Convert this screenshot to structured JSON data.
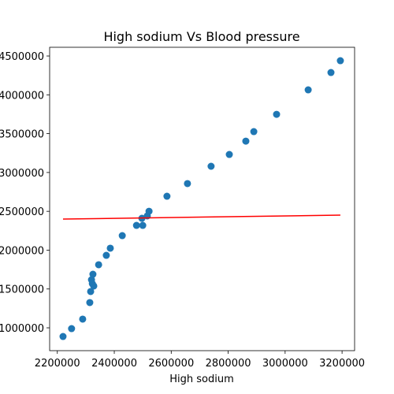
{
  "chart_data": {
    "type": "scatter",
    "title": "High sodium Vs Blood pressure",
    "xlabel": "High sodium",
    "color": "#1f77b4",
    "x": [
      2220000,
      2250000,
      2289000,
      2314000,
      2317000,
      2320000,
      2323000,
      2325000,
      2328000,
      2345000,
      2372000,
      2386000,
      2428000,
      2478000,
      2497000,
      2500000,
      2516000,
      2522000,
      2585000,
      2657000,
      2740000,
      2804000,
      2862000,
      2890000,
      2970000,
      3081000,
      3161000,
      3194000
    ],
    "values": [
      888000,
      990000,
      1112000,
      1325000,
      1467000,
      1619000,
      1568000,
      1690000,
      1538000,
      1812000,
      1933000,
      2025000,
      2187000,
      2319000,
      2410000,
      2319000,
      2441000,
      2501000,
      2694000,
      2857000,
      3080000,
      3232000,
      3404000,
      3526000,
      3749000,
      4064000,
      4287000,
      4439000
    ],
    "fit_line": {
      "x": [
        2220000,
        3194000
      ],
      "y": [
        2400000,
        2451000
      ],
      "color": "#ff0000"
    },
    "xlim": [
      2173000,
      3244000
    ],
    "ylim": [
      706000,
      4612000
    ],
    "xticks": [
      2200000,
      2400000,
      2600000,
      2800000,
      3000000,
      3200000
    ],
    "yticks": [
      1000000,
      1500000,
      2000000,
      2500000,
      3000000,
      3500000,
      4000000,
      4500000
    ],
    "grid": false
  }
}
